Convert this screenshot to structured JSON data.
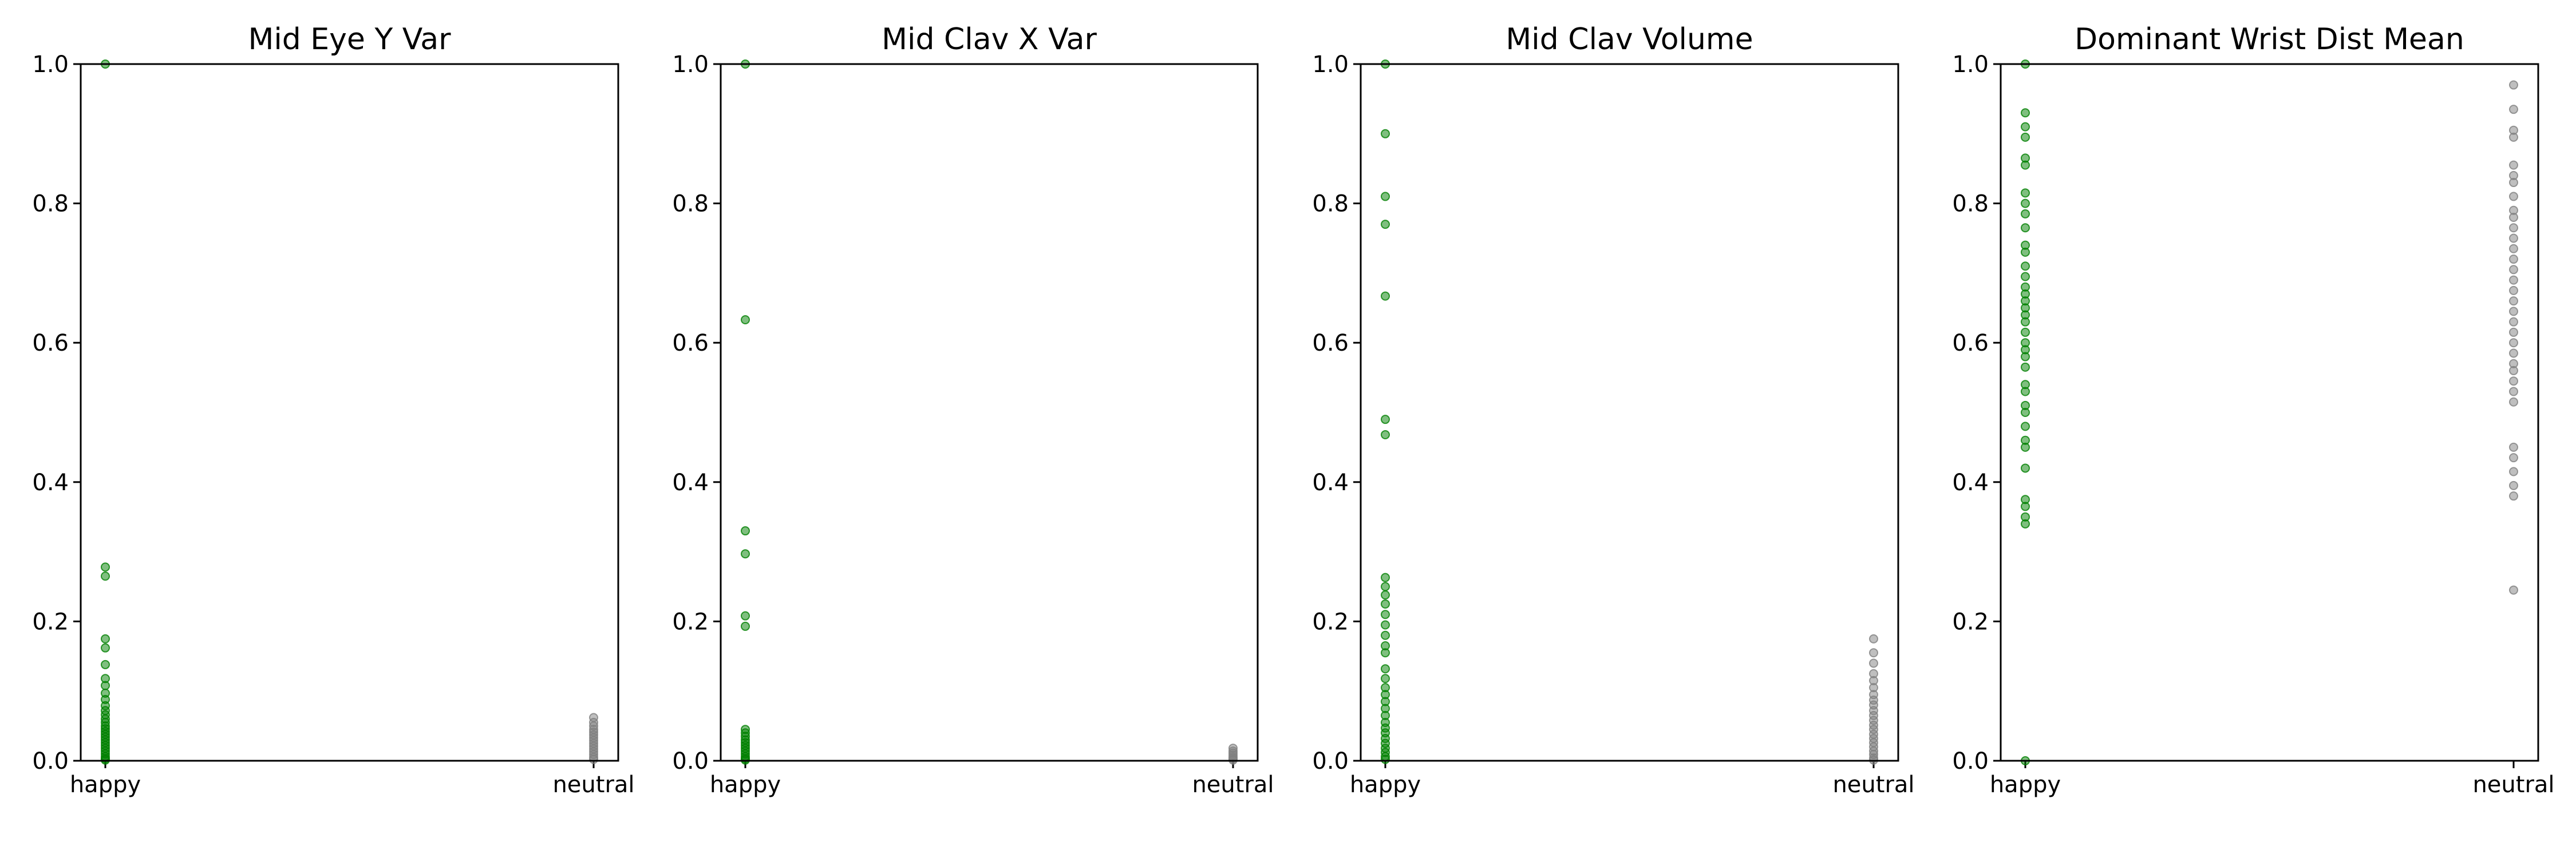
{
  "colors": {
    "happy": "#008000",
    "neutral": "#808080",
    "axes": "#000000",
    "background": "#ffffff"
  },
  "chart_data": [
    {
      "type": "scatter",
      "title": "Mid Eye Y Var",
      "categories": [
        "happy",
        "neutral"
      ],
      "ylim": [
        0,
        1
      ],
      "yticks": [
        "0.0",
        "0.2",
        "0.4",
        "0.6",
        "0.8",
        "1.0"
      ],
      "grid": false,
      "series": [
        {
          "category": "happy",
          "color": "#008000",
          "values": [
            1.0,
            0.278,
            0.265,
            0.175,
            0.162,
            0.138,
            0.118,
            0.108,
            0.097,
            0.088,
            0.079,
            0.072,
            0.066,
            0.06,
            0.055,
            0.05,
            0.046,
            0.042,
            0.038,
            0.034,
            0.03,
            0.026,
            0.022,
            0.018,
            0.014,
            0.01,
            0.006,
            0.003,
            0.001
          ]
        },
        {
          "category": "neutral",
          "color": "#808080",
          "values": [
            0.062,
            0.055,
            0.05,
            0.045,
            0.041,
            0.037,
            0.033,
            0.029,
            0.025,
            0.021,
            0.017,
            0.013,
            0.009,
            0.005,
            0.002
          ]
        }
      ]
    },
    {
      "type": "scatter",
      "title": "Mid Clav X Var",
      "categories": [
        "happy",
        "neutral"
      ],
      "ylim": [
        0,
        1
      ],
      "yticks": [
        "0.0",
        "0.2",
        "0.4",
        "0.6",
        "0.8",
        "1.0"
      ],
      "grid": false,
      "series": [
        {
          "category": "happy",
          "color": "#008000",
          "values": [
            1.0,
            0.633,
            0.33,
            0.297,
            0.208,
            0.193,
            0.045,
            0.04,
            0.035,
            0.03,
            0.026,
            0.022,
            0.018,
            0.014,
            0.01,
            0.006,
            0.003,
            0.001
          ]
        },
        {
          "category": "neutral",
          "color": "#808080",
          "values": [
            0.018,
            0.014,
            0.011,
            0.008,
            0.005,
            0.003,
            0.001
          ]
        }
      ]
    },
    {
      "type": "scatter",
      "title": "Mid Clav Volume",
      "categories": [
        "happy",
        "neutral"
      ],
      "ylim": [
        0,
        1
      ],
      "yticks": [
        "0.0",
        "0.2",
        "0.4",
        "0.6",
        "0.8",
        "1.0"
      ],
      "grid": false,
      "series": [
        {
          "category": "happy",
          "color": "#008000",
          "values": [
            1.0,
            0.9,
            0.81,
            0.77,
            0.667,
            0.49,
            0.468,
            0.263,
            0.25,
            0.238,
            0.225,
            0.21,
            0.195,
            0.18,
            0.165,
            0.155,
            0.132,
            0.118,
            0.105,
            0.095,
            0.085,
            0.075,
            0.065,
            0.055,
            0.047,
            0.04,
            0.032,
            0.025,
            0.018,
            0.012,
            0.006,
            0.002
          ]
        },
        {
          "category": "neutral",
          "color": "#808080",
          "values": [
            0.175,
            0.155,
            0.14,
            0.125,
            0.115,
            0.105,
            0.095,
            0.087,
            0.08,
            0.072,
            0.065,
            0.058,
            0.051,
            0.045,
            0.038,
            0.032,
            0.026,
            0.02,
            0.014,
            0.009,
            0.004,
            0.001
          ]
        }
      ]
    },
    {
      "type": "scatter",
      "title": "Dominant Wrist Dist Mean",
      "categories": [
        "happy",
        "neutral"
      ],
      "ylim": [
        0,
        1
      ],
      "yticks": [
        "0.0",
        "0.2",
        "0.4",
        "0.6",
        "0.8",
        "1.0"
      ],
      "grid": false,
      "series": [
        {
          "category": "happy",
          "color": "#008000",
          "values": [
            1.0,
            0.93,
            0.91,
            0.895,
            0.865,
            0.855,
            0.815,
            0.8,
            0.785,
            0.765,
            0.74,
            0.73,
            0.71,
            0.695,
            0.68,
            0.67,
            0.66,
            0.65,
            0.64,
            0.63,
            0.615,
            0.6,
            0.59,
            0.58,
            0.565,
            0.54,
            0.53,
            0.51,
            0.5,
            0.48,
            0.46,
            0.45,
            0.42,
            0.375,
            0.365,
            0.35,
            0.34,
            0.0
          ]
        },
        {
          "category": "neutral",
          "color": "#808080",
          "values": [
            0.97,
            0.935,
            0.905,
            0.895,
            0.855,
            0.84,
            0.83,
            0.81,
            0.79,
            0.78,
            0.765,
            0.75,
            0.735,
            0.72,
            0.705,
            0.69,
            0.675,
            0.66,
            0.645,
            0.63,
            0.615,
            0.6,
            0.585,
            0.57,
            0.56,
            0.545,
            0.53,
            0.515,
            0.45,
            0.435,
            0.415,
            0.395,
            0.38,
            0.245
          ]
        }
      ]
    }
  ]
}
